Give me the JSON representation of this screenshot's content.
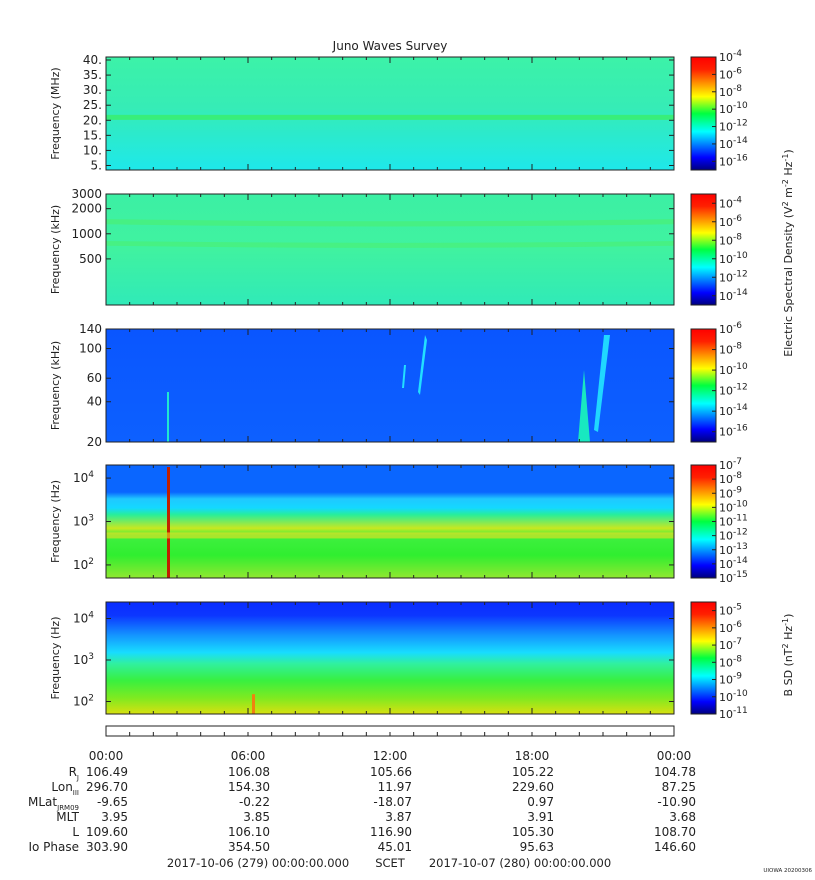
{
  "chart_data": {
    "type": "heatmap",
    "title": "Juno Waves Survey",
    "panels": [
      {
        "ylabel": "Frequency (MHz)",
        "yscale": "linear",
        "ylim": [
          3.5,
          41
        ],
        "yticks": [
          {
            "v": 40,
            "label": "40."
          },
          {
            "v": 35,
            "label": "35."
          },
          {
            "v": 30,
            "label": "30."
          },
          {
            "v": 25,
            "label": "25."
          },
          {
            "v": 20,
            "label": "20."
          },
          {
            "v": 15,
            "label": "15."
          },
          {
            "v": 10,
            "label": "10."
          },
          {
            "v": 5,
            "label": "5."
          }
        ],
        "colorbar": {
          "range_exp": [
            -17,
            -4
          ],
          "ticks": [
            {
              "exp": -4,
              "label": "10",
              "sup": "-4"
            },
            {
              "exp": -6,
              "label": "10",
              "sup": "-6"
            },
            {
              "exp": -8,
              "label": "10",
              "sup": "-8"
            },
            {
              "exp": -10,
              "label": "10",
              "sup": "-10"
            },
            {
              "exp": -12,
              "label": "10",
              "sup": "-12"
            },
            {
              "exp": -14,
              "label": "10",
              "sup": "-14"
            },
            {
              "exp": -16,
              "label": "10",
              "sup": "-16"
            }
          ]
        }
      },
      {
        "ylabel": "Frequency (kHz)",
        "yscale": "log",
        "ylim": [
          140,
          3000
        ],
        "yticks": [
          {
            "v": 3000,
            "label": "3000"
          },
          {
            "v": 2000,
            "label": "2000"
          },
          {
            "v": 1000,
            "label": "1000"
          },
          {
            "v": 500,
            "label": "500"
          }
        ],
        "colorbar": {
          "range_exp": [
            -15,
            -3
          ],
          "ticks": [
            {
              "exp": -4,
              "label": "10",
              "sup": "-4"
            },
            {
              "exp": -6,
              "label": "10",
              "sup": "-6"
            },
            {
              "exp": -8,
              "label": "10",
              "sup": "-8"
            },
            {
              "exp": -10,
              "label": "10",
              "sup": "-10"
            },
            {
              "exp": -12,
              "label": "10",
              "sup": "-12"
            },
            {
              "exp": -14,
              "label": "10",
              "sup": "-14"
            }
          ]
        }
      },
      {
        "ylabel": "Frequency (kHz)",
        "yscale": "log",
        "ylim": [
          20,
          140
        ],
        "yticks": [
          {
            "v": 140,
            "label": "140"
          },
          {
            "v": 100,
            "label": "100"
          },
          {
            "v": 60,
            "label": "60"
          },
          {
            "v": 40,
            "label": "40"
          },
          {
            "v": 20,
            "label": "20"
          }
        ],
        "colorbar": {
          "range_exp": [
            -17,
            -6
          ],
          "ticks": [
            {
              "exp": -6,
              "label": "10",
              "sup": "-6"
            },
            {
              "exp": -8,
              "label": "10",
              "sup": "-8"
            },
            {
              "exp": -10,
              "label": "10",
              "sup": "-10"
            },
            {
              "exp": -12,
              "label": "10",
              "sup": "-12"
            },
            {
              "exp": -14,
              "label": "10",
              "sup": "-14"
            },
            {
              "exp": -16,
              "label": "10",
              "sup": "-16"
            }
          ]
        }
      },
      {
        "ylabel": "Frequency (Hz)",
        "yscale": "log",
        "ylim": [
          50,
          20000
        ],
        "yticks": [
          {
            "v": 10000,
            "label": "10",
            "sup": "4"
          },
          {
            "v": 1000,
            "label": "10",
            "sup": "3"
          },
          {
            "v": 100,
            "label": "10",
            "sup": "2"
          }
        ],
        "colorbar": {
          "range_exp": [
            -15,
            -7
          ],
          "ticks": [
            {
              "exp": -7,
              "label": "10",
              "sup": "-7"
            },
            {
              "exp": -8,
              "label": "10",
              "sup": "-8"
            },
            {
              "exp": -9,
              "label": "10",
              "sup": "-9"
            },
            {
              "exp": -10,
              "label": "10",
              "sup": "-10"
            },
            {
              "exp": -11,
              "label": "10",
              "sup": "-11"
            },
            {
              "exp": -12,
              "label": "10",
              "sup": "-12"
            },
            {
              "exp": -13,
              "label": "10",
              "sup": "-13"
            },
            {
              "exp": -14,
              "label": "10",
              "sup": "-14"
            },
            {
              "exp": -15,
              "label": "10",
              "sup": "-15"
            }
          ]
        }
      },
      {
        "ylabel": "Frequency (Hz)",
        "yscale": "log",
        "ylim": [
          50,
          25000
        ],
        "yticks": [
          {
            "v": 10000,
            "label": "10",
            "sup": "4"
          },
          {
            "v": 1000,
            "label": "10",
            "sup": "3"
          },
          {
            "v": 100,
            "label": "10",
            "sup": "2"
          }
        ],
        "colorbar": {
          "range_exp": [
            -11,
            -4.5
          ],
          "ticks": [
            {
              "exp": -5,
              "label": "10",
              "sup": "-5"
            },
            {
              "exp": -6,
              "label": "10",
              "sup": "-6"
            },
            {
              "exp": -7,
              "label": "10",
              "sup": "-7"
            },
            {
              "exp": -8,
              "label": "10",
              "sup": "-8"
            },
            {
              "exp": -9,
              "label": "10",
              "sup": "-9"
            },
            {
              "exp": -10,
              "label": "10",
              "sup": "-10"
            },
            {
              "exp": -11,
              "label": "10",
              "sup": "-11"
            }
          ]
        }
      }
    ],
    "colorbar_labels": [
      {
        "text": "Electric Spectral Density (V",
        "sup1": "2",
        "mid": " m",
        "sup2": "-2",
        "mid2": " Hz",
        "sup3": "-1",
        "end": ")"
      },
      {
        "text": "B SD (nT",
        "sup1": "2",
        "mid": " Hz",
        "sup2": "-1",
        "mid2": "",
        "sup3": "",
        "end": ")"
      }
    ],
    "x": {
      "hour_range": [
        0,
        24
      ],
      "tick_labels": [
        "00:00",
        "06:00",
        "12:00",
        "18:00",
        "00:00"
      ]
    },
    "ephemeris": [
      {
        "label": "R",
        "sub": "J",
        "values": [
          "106.49",
          "106.08",
          "105.66",
          "105.22",
          "104.78"
        ]
      },
      {
        "label": "Lon",
        "sub": "III",
        "values": [
          "296.70",
          "154.30",
          "11.97",
          "229.60",
          "87.25"
        ]
      },
      {
        "label": "MLat",
        "sub": "JRM09",
        "values": [
          "-9.65",
          "-0.22",
          "-18.07",
          "0.97",
          "-10.90"
        ]
      },
      {
        "label": "MLT",
        "sub": "",
        "values": [
          "3.95",
          "3.85",
          "3.87",
          "3.91",
          "3.68"
        ]
      },
      {
        "label": "L",
        "sub": "",
        "values": [
          "109.60",
          "106.10",
          "116.90",
          "105.30",
          "108.70"
        ]
      },
      {
        "label": "Io Phase",
        "sub": "",
        "values": [
          "303.90",
          "354.50",
          "45.01",
          "95.63",
          "146.60"
        ]
      }
    ],
    "footer": {
      "start": "2017-10-06 (279) 00:00:00.000",
      "scet": "SCET",
      "end": "2017-10-07 (280) 00:00:00.000"
    },
    "credit": "UIOWA 20200306"
  }
}
